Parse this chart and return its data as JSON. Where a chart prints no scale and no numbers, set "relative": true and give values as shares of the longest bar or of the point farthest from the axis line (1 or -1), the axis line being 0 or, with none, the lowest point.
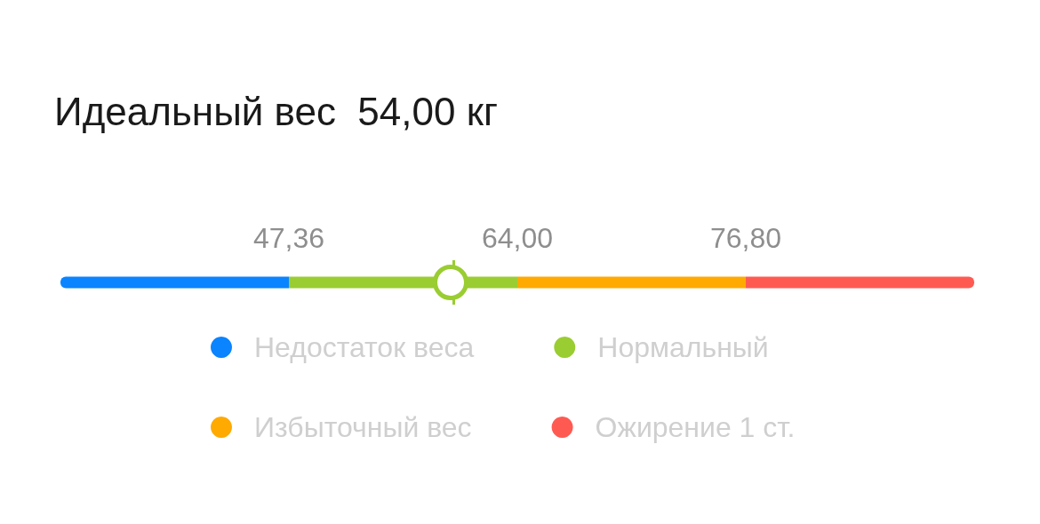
{
  "chart_data": {
    "type": "bar",
    "orientation": "horizontal",
    "stacked": true,
    "relative": true,
    "title": "Идеальный вес  54,00 кг",
    "categories": [
      null
    ],
    "series": [
      {
        "name": "Недостаток веса",
        "color": "#0a84ff",
        "values": [
          0.25
        ]
      },
      {
        "name": "Нормальный",
        "color": "#9acd32",
        "values": [
          0.25
        ]
      },
      {
        "name": "Избыточный вес",
        "color": "#ffaa00",
        "values": [
          0.25
        ]
      },
      {
        "name": "Ожирение 1 ст.",
        "color": "#ff5a52",
        "values": [
          0.25
        ]
      }
    ],
    "ref_lines": [
      {
        "axis": "x",
        "value": 0.427,
        "color": "#9acd32"
      }
    ],
    "annotations": [
      "47,36",
      "64,00",
      "76,80"
    ],
    "legend": "bottom"
  }
}
